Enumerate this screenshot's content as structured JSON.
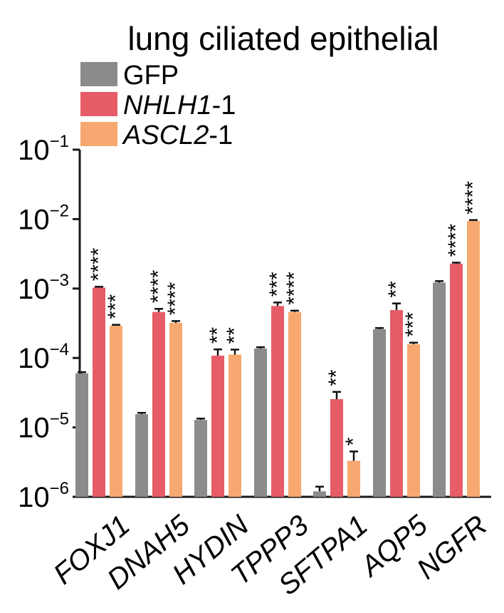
{
  "chart_data": {
    "type": "bar",
    "title": "lung ciliated epithelial",
    "xlabel": "",
    "ylabel": "",
    "yscale": "log",
    "ylim": [
      1e-06,
      0.1
    ],
    "y_ticks": [
      {
        "value": 1e-06,
        "base": "10",
        "exp": "−6"
      },
      {
        "value": 1e-05,
        "base": "10",
        "exp": "−5"
      },
      {
        "value": 0.0001,
        "base": "10",
        "exp": "−4"
      },
      {
        "value": 0.001,
        "base": "10",
        "exp": "−3"
      },
      {
        "value": 0.01,
        "base": "10",
        "exp": "−2"
      },
      {
        "value": 0.1,
        "base": "10",
        "exp": "−1"
      }
    ],
    "grid": false,
    "legend_position": "top-left",
    "categories": [
      "FOXJ1",
      "DNAH5",
      "HYDIN",
      "TPPP3",
      "SFTPA1",
      "AQP5",
      "NGFR"
    ],
    "series": [
      {
        "name_italic": "",
        "name_suffix": "GFP",
        "color": "#8c8b8b",
        "values": [
          6e-05,
          1.55e-05,
          1.28e-05,
          0.000137,
          1.2e-06,
          0.00026,
          0.00122
        ],
        "errors": [
          2.5e-06,
          7e-07,
          6e-07,
          6e-06,
          2e-07,
          1e-05,
          6e-05
        ],
        "stars": [
          "",
          "",
          "",
          "",
          "",
          "",
          ""
        ]
      },
      {
        "name_italic": "NHLH1",
        "name_suffix": "-1",
        "color": "#e65c67",
        "values": [
          0.00103,
          0.00046,
          0.000108,
          0.00056,
          2.55e-05,
          0.00049,
          0.00228
        ],
        "errors": [
          3e-05,
          5e-05,
          2.5e-05,
          7e-05,
          7e-06,
          0.00012,
          8e-05
        ],
        "stars": [
          "****",
          "****",
          "**",
          "***",
          "**",
          "**",
          "****"
        ]
      },
      {
        "name_italic": "ASCL2",
        "name_suffix": "-1",
        "color": "#f7a870",
        "values": [
          0.00029,
          0.00032,
          0.000112,
          0.00046,
          3.3e-06,
          0.000158,
          0.0094
        ],
        "errors": [
          1e-05,
          2e-05,
          2e-05,
          2e-05,
          1.2e-06,
          8e-06,
          0.0003
        ],
        "stars": [
          "***",
          "****",
          "**",
          "****",
          "*",
          "***",
          "****"
        ]
      }
    ]
  }
}
